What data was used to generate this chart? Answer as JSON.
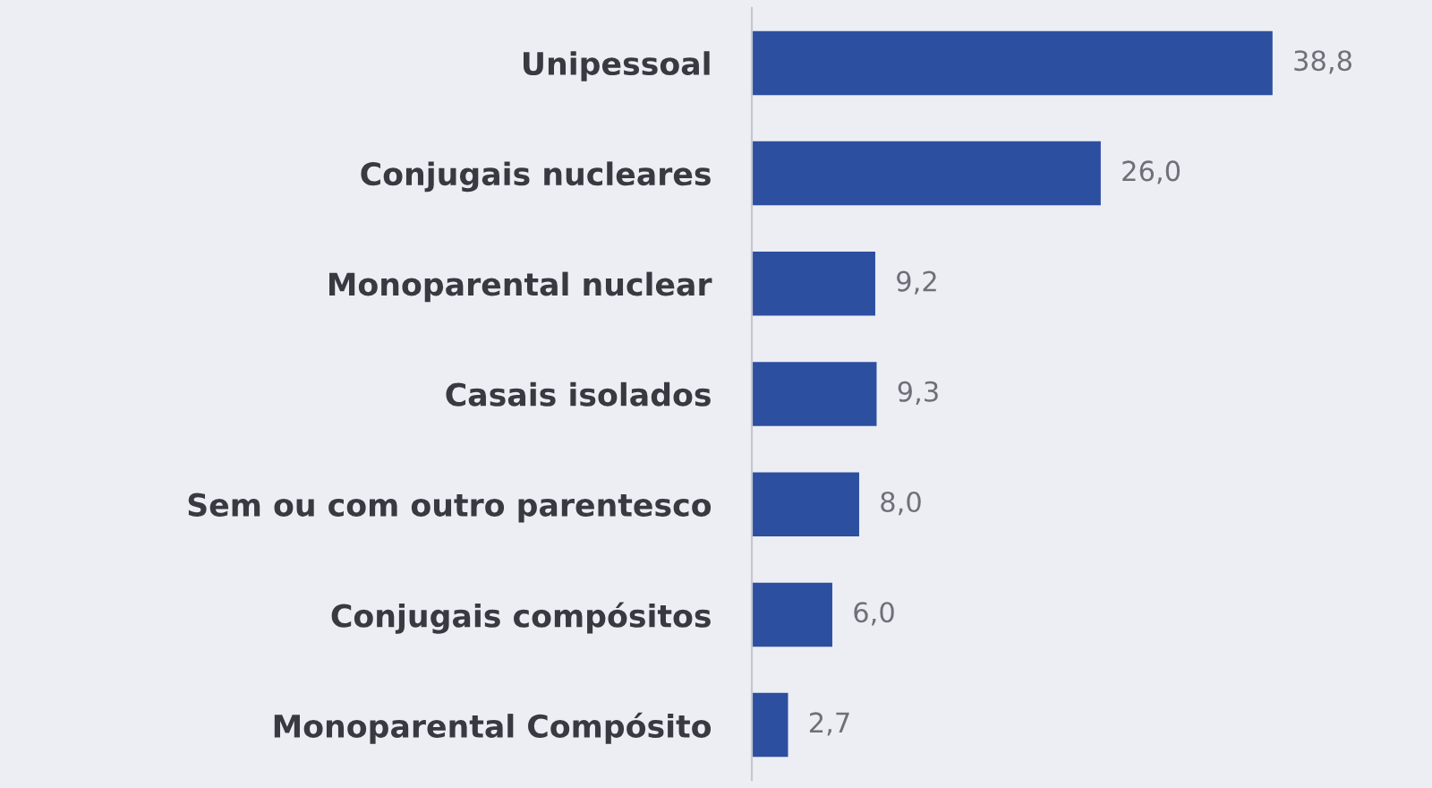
{
  "chart_data": {
    "type": "bar",
    "orientation": "horizontal",
    "categories": [
      "Unipessoal",
      "Conjugais nucleares",
      "Monoparental nuclear",
      "Casais isolados",
      "Sem ou com outro parentesco",
      "Conjugais compósitos",
      "Monoparental Compósito"
    ],
    "values": [
      38.8,
      26.0,
      9.2,
      9.3,
      8.0,
      6.0,
      2.7
    ],
    "value_labels": [
      "38,8",
      "26,0",
      "9,2",
      "9,3",
      "8,0",
      "6,0",
      "2,7"
    ],
    "color": "#2d4f9f",
    "tick_labels": "y"
  }
}
